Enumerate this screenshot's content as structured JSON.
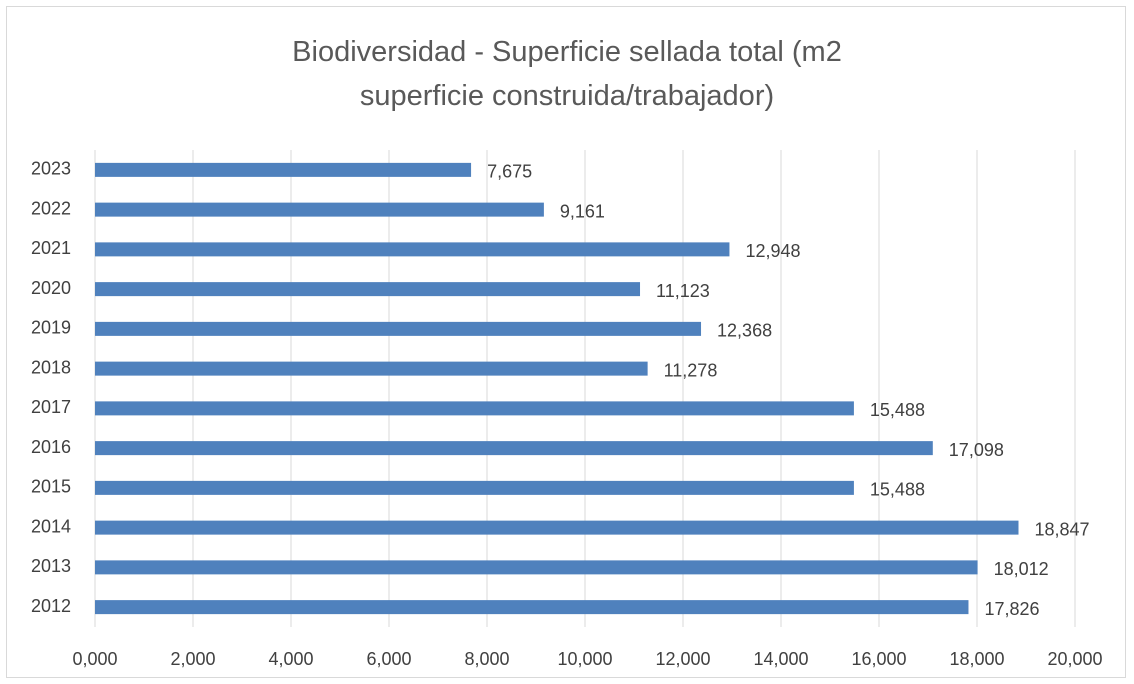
{
  "chart_data": {
    "type": "bar",
    "orientation": "horizontal",
    "title": "Biodiversidad - Superficie sellada total (m2 superficie construida/trabajador)",
    "categories": [
      "2012",
      "2013",
      "2014",
      "2015",
      "2016",
      "2017",
      "2018",
      "2019",
      "2020",
      "2021",
      "2022",
      "2023"
    ],
    "values": [
      17.826,
      18.012,
      18.847,
      15.488,
      17.098,
      15.488,
      11.278,
      12.368,
      11.123,
      12.948,
      9.161,
      7.675
    ],
    "value_labels": [
      "17,826",
      "18,012",
      "18,847",
      "15,488",
      "17,098",
      "15,488",
      "11,278",
      "12,368",
      "11,123",
      "12,948",
      "9,161",
      "7,675"
    ],
    "color": "#4f81bd",
    "xlim": [
      0,
      20
    ],
    "xticks": [
      {
        "value": 0,
        "label": "0,000"
      },
      {
        "value": 2,
        "label": "2,000"
      },
      {
        "value": 4,
        "label": "4,000"
      },
      {
        "value": 6,
        "label": "6,000"
      },
      {
        "value": 8,
        "label": "8,000"
      },
      {
        "value": 10,
        "label": "10,000"
      },
      {
        "value": 12,
        "label": "12,000"
      },
      {
        "value": 14,
        "label": "14,000"
      },
      {
        "value": 16,
        "label": "16,000"
      },
      {
        "value": 18,
        "label": "18,000"
      },
      {
        "value": 20,
        "label": "20,000"
      }
    ],
    "grid": true
  }
}
